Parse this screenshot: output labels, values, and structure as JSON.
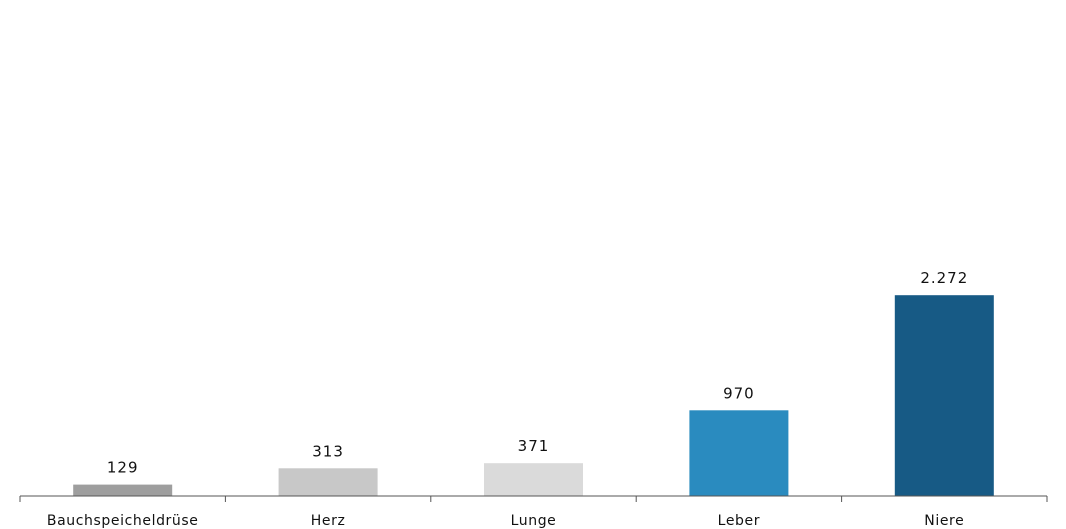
{
  "chart_data": {
    "type": "bar",
    "title": "",
    "xlabel": "",
    "ylabel": "",
    "categories": [
      "Bauchspeicheldrüse",
      "Herz",
      "Lunge",
      "Leber",
      "Niere"
    ],
    "values": [
      129,
      313,
      371,
      970,
      2272
    ],
    "value_labels": [
      "129",
      "313",
      "371",
      "970",
      "2.272"
    ],
    "colors": [
      "#9e9e9e",
      "#c8c8c8",
      "#dadada",
      "#2a8bbf",
      "#175a85"
    ],
    "ylim": [
      0,
      5500
    ],
    "grid": false,
    "legend": "none"
  }
}
